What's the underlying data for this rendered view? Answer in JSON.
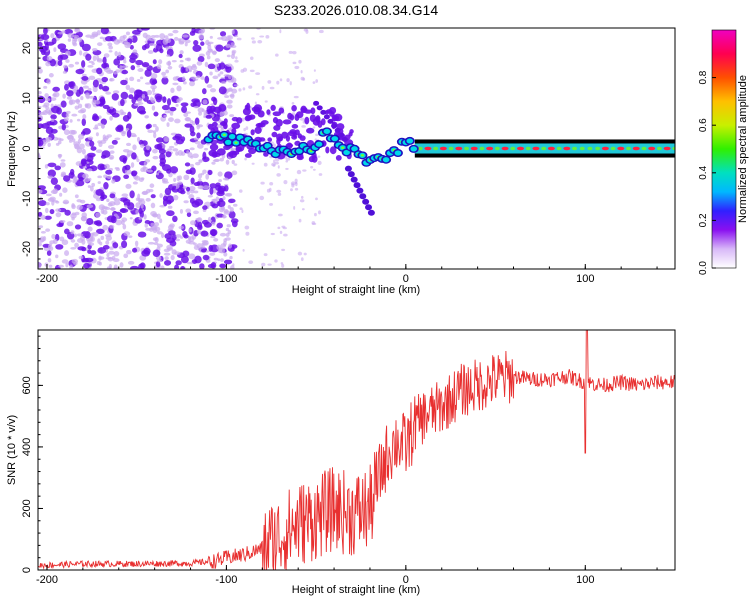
{
  "title": "S233.2026.010.08.34.G14",
  "colors": {
    "snr_line": "#e83030",
    "scatter_purple": "#6a10e8",
    "scatter_light": "#c9aaf0",
    "track_black": "#000000"
  },
  "chart_data": [
    {
      "type": "heatmap",
      "name": "spectrogram",
      "xlabel": "Height of straight line (km)",
      "ylabel": "Frequency (Hz)",
      "xlim": [
        -205,
        150
      ],
      "ylim": [
        -24,
        24
      ],
      "xticks": [
        -200,
        -100,
        0,
        100
      ],
      "yticks": [
        -20,
        -10,
        0,
        10,
        20
      ],
      "colorbar": {
        "label": "Normalized spectral amplitude",
        "range": [
          0.0,
          1.0
        ],
        "ticks": [
          0.0,
          0.2,
          0.4,
          0.6,
          0.8
        ],
        "tick_labels": [
          "0.0",
          "0.2",
          "0.4",
          "0.6",
          "0.8"
        ],
        "colormap": [
          "#ffffff",
          "#d8b8f8",
          "#8a10f0",
          "#3020ff",
          "#00b8ff",
          "#00e0c0",
          "#30f000",
          "#c8f000",
          "#ffc000",
          "#ff5000",
          "#ff0050",
          "#f000c0"
        ]
      },
      "ridge": [
        {
          "x": -110,
          "y": 2.5
        },
        {
          "x": -100,
          "y": 2.0
        },
        {
          "x": -90,
          "y": 1.5
        },
        {
          "x": -80,
          "y": 0.5
        },
        {
          "x": -70,
          "y": -1.0
        },
        {
          "x": -60,
          "y": -0.5
        },
        {
          "x": -50,
          "y": 0.5
        },
        {
          "x": -45,
          "y": 3.0
        },
        {
          "x": -40,
          "y": 1.5
        },
        {
          "x": -35,
          "y": -0.5
        },
        {
          "x": -30,
          "y": 0.0
        },
        {
          "x": -25,
          "y": -2.0
        },
        {
          "x": -20,
          "y": -2.5
        },
        {
          "x": -15,
          "y": -1.5
        },
        {
          "x": -10,
          "y": -1.5
        },
        {
          "x": -5,
          "y": -0.5
        },
        {
          "x": 0,
          "y": 1.5
        },
        {
          "x": 5,
          "y": 0.5
        },
        {
          "x": 20,
          "y": 0.0
        },
        {
          "x": 150,
          "y": 0.0
        }
      ]
    },
    {
      "type": "line",
      "name": "snr",
      "xlabel": "Height of straight line (km)",
      "ylabel": "SNR (10 * v/v)",
      "xlim": [
        -205,
        150
      ],
      "ylim": [
        0,
        780
      ],
      "xticks": [
        -200,
        -100,
        0,
        100
      ],
      "yticks": [
        0,
        200,
        400,
        600
      ],
      "series": [
        {
          "name": "SNR",
          "x": [
            -205,
            -180,
            -150,
            -120,
            -105,
            -100,
            -90,
            -80,
            -70,
            -60,
            -50,
            -40,
            -30,
            -20,
            -15,
            -10,
            -5,
            0,
            5,
            10,
            20,
            30,
            40,
            50,
            60,
            70,
            80,
            90,
            100,
            110,
            120,
            130,
            140,
            150
          ],
          "values": [
            15,
            20,
            20,
            22,
            30,
            40,
            50,
            70,
            110,
            150,
            170,
            200,
            180,
            200,
            300,
            380,
            420,
            400,
            470,
            500,
            530,
            580,
            600,
            620,
            630,
            620,
            620,
            630,
            610,
            600,
            610,
            600,
            610,
            610
          ]
        }
      ]
    }
  ]
}
